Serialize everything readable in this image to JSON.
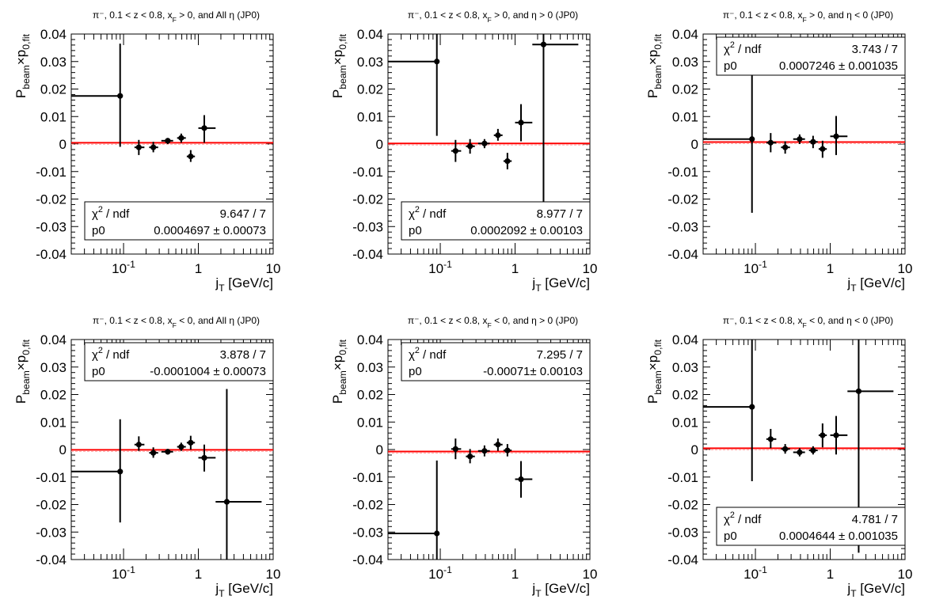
{
  "chart_data": [
    {
      "type": "scatter",
      "title": "π⁻, 0.1 < z < 0.8, x_F > 0, and All η (JP0)",
      "xlabel": "j_T [GeV/c]",
      "ylabel": "P_beam×p_0,fit",
      "xscale": "log",
      "xlim": [
        0.02,
        10
      ],
      "ylim": [
        -0.04,
        0.04
      ],
      "yticks": [
        "-0.04",
        "-0.03",
        "-0.02",
        "-0.01",
        "0",
        "0.01",
        "0.02",
        "0.03",
        "0.04"
      ],
      "xticks": [
        "10^-1",
        "1",
        "10"
      ],
      "fit": {
        "p0": 0.0004697,
        "chi2": "9.647 / 7",
        "p0_text": "0.0004697 ± 0.00073"
      },
      "stats_position": "bottom",
      "series": [
        {
          "points": [
            {
              "x": 0.09,
              "y": 0.0175,
              "xlo": 0.02,
              "xhi": 0.09,
              "ylo": -0.001,
              "yhi": 0.0365
            },
            {
              "x": 0.16,
              "y": -0.0012,
              "xlo": 0.14,
              "xhi": 0.19,
              "ylo": -0.004,
              "yhi": 0.0015
            },
            {
              "x": 0.25,
              "y": -0.0012,
              "xlo": 0.22,
              "xhi": 0.29,
              "ylo": -0.003,
              "yhi": 0.0008
            },
            {
              "x": 0.39,
              "y": 0.0012,
              "xlo": 0.32,
              "xhi": 0.46,
              "ylo": 0.0,
              "yhi": 0.0022
            },
            {
              "x": 0.59,
              "y": 0.0022,
              "xlo": 0.52,
              "xhi": 0.68,
              "ylo": 0.0005,
              "yhi": 0.0038
            },
            {
              "x": 0.79,
              "y": -0.0045,
              "xlo": 0.7,
              "xhi": 0.9,
              "ylo": -0.0065,
              "yhi": -0.0022
            },
            {
              "x": 1.2,
              "y": 0.0058,
              "xlo": 1.0,
              "xhi": 1.7,
              "ylo": 0.0005,
              "yhi": 0.0105
            }
          ]
        }
      ]
    },
    {
      "type": "scatter",
      "title": "π⁻, 0.1 < z < 0.8, x_F > 0, and η > 0 (JP0)",
      "xlabel": "j_T [GeV/c]",
      "ylabel": "P_beam×p_0,fit",
      "xscale": "log",
      "xlim": [
        0.02,
        10
      ],
      "ylim": [
        -0.04,
        0.04
      ],
      "yticks": [
        "-0.04",
        "-0.03",
        "-0.02",
        "-0.01",
        "0",
        "0.01",
        "0.02",
        "0.03",
        "0.04"
      ],
      "xticks": [
        "10^-1",
        "1",
        "10"
      ],
      "fit": {
        "p0": 0.0002092,
        "chi2": "8.977 / 7",
        "p0_text": "0.0002092 ± 0.00103"
      },
      "stats_position": "bottom",
      "series": [
        {
          "points": [
            {
              "x": 0.09,
              "y": 0.03,
              "xlo": 0.02,
              "xhi": 0.09,
              "ylo": 0.003,
              "yhi": 0.04
            },
            {
              "x": 0.16,
              "y": -0.0025,
              "xlo": 0.14,
              "xhi": 0.19,
              "ylo": -0.0065,
              "yhi": 0.0015
            },
            {
              "x": 0.25,
              "y": -0.0008,
              "xlo": 0.22,
              "xhi": 0.29,
              "ylo": -0.0035,
              "yhi": 0.0018
            },
            {
              "x": 0.39,
              "y": 0.0002,
              "xlo": 0.32,
              "xhi": 0.46,
              "ylo": -0.0015,
              "yhi": 0.0018
            },
            {
              "x": 0.59,
              "y": 0.0032,
              "xlo": 0.52,
              "xhi": 0.68,
              "ylo": 0.0012,
              "yhi": 0.0055
            },
            {
              "x": 0.79,
              "y": -0.0062,
              "xlo": 0.7,
              "xhi": 0.9,
              "ylo": -0.0092,
              "yhi": -0.0032
            },
            {
              "x": 1.2,
              "y": 0.0078,
              "xlo": 1.0,
              "xhi": 1.7,
              "ylo": 0.001,
              "yhi": 0.0145
            },
            {
              "x": 2.4,
              "y": 0.0362,
              "xlo": 1.7,
              "xhi": 7.0,
              "ylo": -0.0215,
              "yhi": 0.04
            }
          ]
        }
      ]
    },
    {
      "type": "scatter",
      "title": "π⁻, 0.1 < z < 0.8, x_F > 0, and η < 0 (JP0)",
      "xlabel": "j_T [GeV/c]",
      "ylabel": "P_beam×p_0,fit",
      "xscale": "log",
      "xlim": [
        0.02,
        10
      ],
      "ylim": [
        -0.04,
        0.04
      ],
      "yticks": [
        "-0.04",
        "-0.03",
        "-0.02",
        "-0.01",
        "0",
        "0.01",
        "0.02",
        "0.03",
        "0.04"
      ],
      "xticks": [
        "10^-1",
        "1",
        "10"
      ],
      "fit": {
        "p0": 0.0007246,
        "chi2": "3.743 / 7",
        "p0_text": "0.0007246 ± 0.001035"
      },
      "stats_position": "top",
      "series": [
        {
          "points": [
            {
              "x": 0.09,
              "y": 0.0018,
              "xlo": 0.02,
              "xhi": 0.09,
              "ylo": -0.025,
              "yhi": 0.028
            },
            {
              "x": 0.16,
              "y": 0.0005,
              "xlo": 0.14,
              "xhi": 0.19,
              "ylo": -0.003,
              "yhi": 0.004
            },
            {
              "x": 0.25,
              "y": -0.0012,
              "xlo": 0.22,
              "xhi": 0.29,
              "ylo": -0.0035,
              "yhi": 0.001
            },
            {
              "x": 0.39,
              "y": 0.0018,
              "xlo": 0.32,
              "xhi": 0.46,
              "ylo": 0.0,
              "yhi": 0.0035
            },
            {
              "x": 0.59,
              "y": 0.0008,
              "xlo": 0.52,
              "xhi": 0.68,
              "ylo": -0.0015,
              "yhi": 0.003
            },
            {
              "x": 0.79,
              "y": -0.0018,
              "xlo": 0.7,
              "xhi": 0.9,
              "ylo": -0.005,
              "yhi": 0.0012
            },
            {
              "x": 1.2,
              "y": 0.0028,
              "xlo": 1.0,
              "xhi": 1.7,
              "ylo": -0.004,
              "yhi": 0.0102
            }
          ]
        }
      ]
    },
    {
      "type": "scatter",
      "title": "π⁻, 0.1 < z < 0.8, x_F < 0, and All η (JP0)",
      "xlabel": "j_T [GeV/c]",
      "ylabel": "P_beam×p_0,fit",
      "xscale": "log",
      "xlim": [
        0.02,
        10
      ],
      "ylim": [
        -0.04,
        0.04
      ],
      "yticks": [
        "-0.04",
        "-0.03",
        "-0.02",
        "-0.01",
        "0",
        "0.01",
        "0.02",
        "0.03",
        "0.04"
      ],
      "xticks": [
        "10^-1",
        "1",
        "10"
      ],
      "fit": {
        "p0": -0.0001004,
        "chi2": "3.878 / 7",
        "p0_text": "-0.0001004 ± 0.00073"
      },
      "stats_position": "top",
      "series": [
        {
          "points": [
            {
              "x": 0.09,
              "y": -0.008,
              "xlo": 0.02,
              "xhi": 0.09,
              "ylo": -0.0265,
              "yhi": 0.011
            },
            {
              "x": 0.16,
              "y": 0.0018,
              "xlo": 0.14,
              "xhi": 0.19,
              "ylo": -0.0005,
              "yhi": 0.0048
            },
            {
              "x": 0.25,
              "y": -0.0012,
              "xlo": 0.22,
              "xhi": 0.29,
              "ylo": -0.003,
              "yhi": 0.0008
            },
            {
              "x": 0.39,
              "y": -0.0008,
              "xlo": 0.32,
              "xhi": 0.46,
              "ylo": -0.0018,
              "yhi": 0.0002
            },
            {
              "x": 0.59,
              "y": 0.001,
              "xlo": 0.52,
              "xhi": 0.68,
              "ylo": -0.0005,
              "yhi": 0.0025
            },
            {
              "x": 0.79,
              "y": 0.0025,
              "xlo": 0.7,
              "xhi": 0.9,
              "ylo": 0.0,
              "yhi": 0.005
            },
            {
              "x": 1.2,
              "y": -0.003,
              "xlo": 1.0,
              "xhi": 1.7,
              "ylo": -0.008,
              "yhi": 0.0018
            },
            {
              "x": 2.4,
              "y": -0.019,
              "xlo": 1.7,
              "xhi": 7.0,
              "ylo": -0.04,
              "yhi": 0.022
            }
          ]
        }
      ]
    },
    {
      "type": "scatter",
      "title": "π⁻, 0.1 < z < 0.8, x_F < 0, and η > 0 (JP0)",
      "xlabel": "j_T [GeV/c]",
      "ylabel": "P_beam×p_0,fit",
      "xscale": "log",
      "xlim": [
        0.02,
        10
      ],
      "ylim": [
        -0.04,
        0.04
      ],
      "yticks": [
        "-0.04",
        "-0.03",
        "-0.02",
        "-0.01",
        "0",
        "0.01",
        "0.02",
        "0.03",
        "0.04"
      ],
      "xticks": [
        "10^-1",
        "1",
        "10"
      ],
      "fit": {
        "p0": -0.00071,
        "chi2": "7.295 / 7",
        "p0_text": "-0.00071± 0.00103"
      },
      "stats_position": "top",
      "series": [
        {
          "points": [
            {
              "x": 0.09,
              "y": -0.0305,
              "xlo": 0.02,
              "xhi": 0.09,
              "ylo": -0.04,
              "yhi": -0.004
            },
            {
              "x": 0.16,
              "y": 0.0002,
              "xlo": 0.14,
              "xhi": 0.19,
              "ylo": -0.0035,
              "yhi": 0.004
            },
            {
              "x": 0.25,
              "y": -0.0025,
              "xlo": 0.22,
              "xhi": 0.29,
              "ylo": -0.005,
              "yhi": 0.0002
            },
            {
              "x": 0.39,
              "y": -0.0005,
              "xlo": 0.32,
              "xhi": 0.46,
              "ylo": -0.0025,
              "yhi": 0.0015
            },
            {
              "x": 0.59,
              "y": 0.0018,
              "xlo": 0.52,
              "xhi": 0.68,
              "ylo": -0.0005,
              "yhi": 0.004
            },
            {
              "x": 0.79,
              "y": -0.0003,
              "xlo": 0.7,
              "xhi": 0.9,
              "ylo": -0.0025,
              "yhi": 0.002
            },
            {
              "x": 1.2,
              "y": -0.0108,
              "xlo": 1.0,
              "xhi": 1.7,
              "ylo": -0.0175,
              "yhi": -0.0042
            }
          ]
        }
      ]
    },
    {
      "type": "scatter",
      "title": "π⁻, 0.1 < z < 0.8, x_F < 0, and η < 0 (JP0)",
      "xlabel": "j_T [GeV/c]",
      "ylabel": "P_beam×p_0,fit",
      "xscale": "log",
      "xlim": [
        0.02,
        10
      ],
      "ylim": [
        -0.04,
        0.04
      ],
      "yticks": [
        "-0.04",
        "-0.03",
        "-0.02",
        "-0.01",
        "0",
        "0.01",
        "0.02",
        "0.03",
        "0.04"
      ],
      "xticks": [
        "10^-1",
        "1",
        "10"
      ],
      "fit": {
        "p0": 0.0004644,
        "chi2": "4.781 / 7",
        "p0_text": "0.0004644 ± 0.001035"
      },
      "stats_position": "bottom",
      "series": [
        {
          "points": [
            {
              "x": 0.09,
              "y": 0.0155,
              "xlo": 0.02,
              "xhi": 0.09,
              "ylo": -0.0115,
              "yhi": 0.04
            },
            {
              "x": 0.16,
              "y": 0.0038,
              "xlo": 0.14,
              "xhi": 0.19,
              "ylo": 0.0005,
              "yhi": 0.0075
            },
            {
              "x": 0.25,
              "y": 0.0002,
              "xlo": 0.22,
              "xhi": 0.29,
              "ylo": -0.0015,
              "yhi": 0.002
            },
            {
              "x": 0.39,
              "y": -0.001,
              "xlo": 0.32,
              "xhi": 0.46,
              "ylo": -0.0025,
              "yhi": 0.0005
            },
            {
              "x": 0.59,
              "y": -0.0003,
              "xlo": 0.52,
              "xhi": 0.68,
              "ylo": -0.0018,
              "yhi": 0.0012
            },
            {
              "x": 0.79,
              "y": 0.0052,
              "xlo": 0.7,
              "xhi": 0.9,
              "ylo": 0.0008,
              "yhi": 0.0095
            },
            {
              "x": 1.2,
              "y": 0.0052,
              "xlo": 1.0,
              "xhi": 1.7,
              "ylo": -0.0018,
              "yhi": 0.0122
            },
            {
              "x": 2.4,
              "y": 0.0212,
              "xlo": 1.7,
              "xhi": 7.0,
              "ylo": -0.0375,
              "yhi": 0.04
            }
          ]
        }
      ]
    }
  ],
  "colors": {
    "fit_line": "#ff0000",
    "fit_band": "#ffaaaa",
    "points": "#000000",
    "frame": "#000000"
  }
}
